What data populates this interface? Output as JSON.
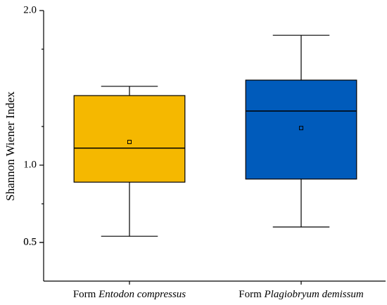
{
  "chart_data": {
    "type": "box",
    "y_label": "Shannon Wiener Index",
    "categories": [
      {
        "prefix": "Form",
        "species": "Entodon compressus"
      },
      {
        "prefix": "Form",
        "species": "Plagiobryum demissum"
      }
    ],
    "boxes": [
      {
        "whisker_low": 0.54,
        "q1": 0.89,
        "median": 1.11,
        "q3": 1.45,
        "whisker_high": 1.51,
        "mean": 1.15,
        "color": "#f5b800"
      },
      {
        "whisker_low": 0.6,
        "q1": 0.91,
        "median": 1.35,
        "q3": 1.55,
        "whisker_high": 1.84,
        "mean": 1.24,
        "color": "#005bbb"
      }
    ],
    "ylim": [
      0.25,
      2.0
    ],
    "yticks": [
      0.5,
      {
        "value": 1.0,
        "label": "1.0"
      },
      0.5,
      {
        "value": 2.0,
        "label": "2.0"
      }
    ],
    "minor_yticks": [
      0.75,
      1.25,
      1.75
    ]
  }
}
